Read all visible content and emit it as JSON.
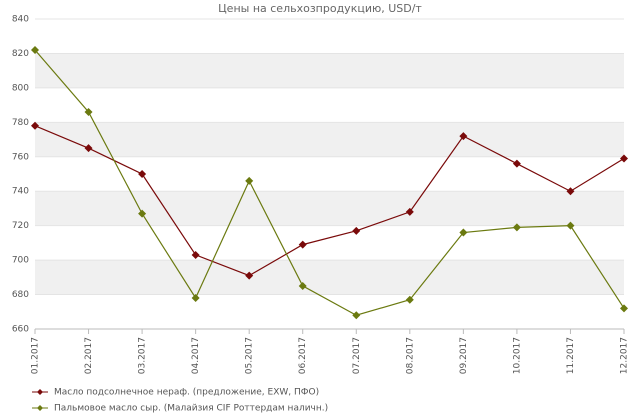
{
  "chart_data": {
    "type": "line",
    "title": "Цены на сельхозпродукцию, USD/т",
    "categories": [
      "01.2017",
      "02.2017",
      "03.2017",
      "04.2017",
      "05.2017",
      "06.2017",
      "07.2017",
      "08.2017",
      "09.2017",
      "10.2017",
      "11.2017",
      "12.2017"
    ],
    "series": [
      {
        "name": "Масло подсолнечное нераф. (предложение, EXW, ПФО)",
        "color": "#7a0a0a",
        "values": [
          778,
          765,
          750,
          703,
          691,
          709,
          717,
          728,
          772,
          756,
          740,
          759
        ]
      },
      {
        "name": "Пальмовое масло сыр. (Малайзия  CIF Роттердам наличн.)",
        "color": "#6b7a10",
        "values": [
          822,
          786,
          727,
          678,
          746,
          685,
          668,
          677,
          716,
          719,
          720,
          672
        ]
      }
    ],
    "ylim": [
      660,
      840
    ],
    "yticks": [
      660,
      680,
      700,
      720,
      740,
      760,
      780,
      800,
      820,
      840
    ],
    "grid": true
  }
}
